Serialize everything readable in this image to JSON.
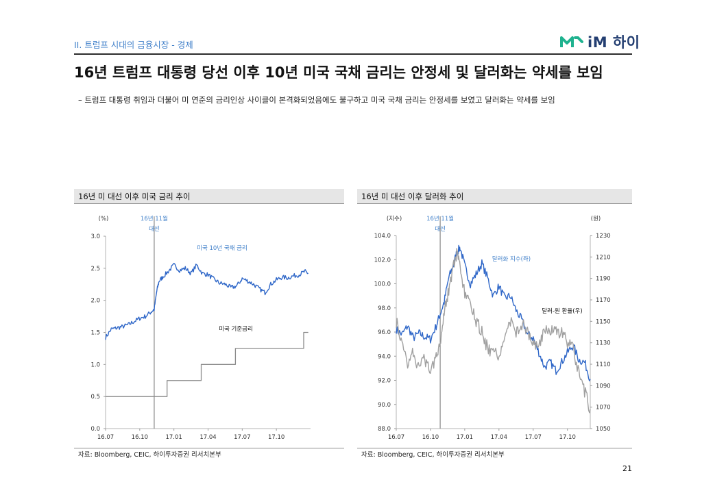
{
  "header": {
    "section_title": "II. 트럼프 시대의 금융시장 - 경제",
    "logo_text": "iM 하이"
  },
  "title": "16년 트럼프 대통령 당선 이후 10년 미국 국채 금리는 안정세 및 달러화는 약세를 보임",
  "bullet": "–  트럼프 대통령 취임과 더불어 미 연준의 금리인상 사이클이 본격화되었음에도 불구하고 미국 국채 금리는 안정세를 보였고 달러화는 약세를 보임",
  "page_number": "21",
  "colors": {
    "accent": "#3f7fc9",
    "series_blue": "#2f67c8",
    "series_gray": "#a0a0a0",
    "policy_gray": "#8a8a8a",
    "brand_green": "#1fb28f",
    "brand_navy": "#233e71"
  },
  "chart_data": [
    {
      "type": "line",
      "panel_title": "16년 미 대선 이후 미국 금리 추이",
      "source": "자료: Bloomberg, CEIC, 하이투자증권 리서치본부",
      "y_unit": "(%)",
      "ylim": [
        0,
        3.0
      ],
      "y_ticks": [
        "0.0",
        "0.5",
        "1.0",
        "1.5",
        "2.0",
        "2.5",
        "3.0"
      ],
      "x_ticks": [
        "16.07",
        "16.10",
        "17.01",
        "17.04",
        "17.07",
        "17.10"
      ],
      "x_tick_index": [
        0,
        3,
        6,
        9,
        12,
        15
      ],
      "xlim": [
        0,
        18
      ],
      "event_line": {
        "x": 4.27,
        "label_line1": "16년 11월",
        "label_line2": "대선"
      },
      "series": [
        {
          "name": "미국 10년 국채 금리",
          "style": "jagged",
          "x": [
            0,
            0.5,
            1.0,
            1.5,
            2.0,
            2.5,
            3.0,
            3.5,
            4.0,
            4.27,
            4.5,
            4.7,
            5.0,
            5.5,
            6.0,
            6.5,
            7.0,
            7.5,
            8.0,
            8.5,
            9.0,
            9.5,
            10.0,
            10.5,
            11.0,
            11.5,
            12.0,
            12.5,
            13.0,
            13.5,
            14.0,
            14.5,
            15.0,
            15.5,
            16.0,
            16.5,
            17.0,
            17.5,
            17.8
          ],
          "values": [
            1.42,
            1.55,
            1.57,
            1.59,
            1.62,
            1.67,
            1.72,
            1.75,
            1.82,
            1.86,
            2.15,
            2.3,
            2.36,
            2.45,
            2.55,
            2.47,
            2.5,
            2.42,
            2.55,
            2.42,
            2.4,
            2.33,
            2.27,
            2.25,
            2.2,
            2.22,
            2.34,
            2.3,
            2.25,
            2.18,
            2.12,
            2.25,
            2.32,
            2.36,
            2.35,
            2.38,
            2.4,
            2.45,
            2.42
          ]
        },
        {
          "name": "미국 기준금리",
          "style": "step",
          "x": [
            0,
            5.4,
            5.4,
            8.4,
            8.4,
            11.4,
            11.4,
            17.4,
            17.4,
            17.8
          ],
          "values": [
            0.5,
            0.5,
            0.75,
            0.75,
            1.0,
            1.0,
            1.25,
            1.25,
            1.5,
            1.5
          ]
        }
      ]
    },
    {
      "type": "line",
      "panel_title": "16년 미 대선 이후 달러화 추이",
      "source": "자료: Bloomberg, CEIC, 하이투자증권 리서치본부",
      "y_unit": "(지수)",
      "y2_unit": "(원)",
      "ylim": [
        88,
        104
      ],
      "y_ticks": [
        "88.0",
        "90.0",
        "92.0",
        "94.0",
        "96.0",
        "98.0",
        "100.0",
        "102.0",
        "104.0"
      ],
      "y2lim": [
        1050,
        1230
      ],
      "y2_ticks": [
        "1050",
        "1070",
        "1090",
        "1110",
        "1130",
        "1150",
        "1170",
        "1190",
        "1210",
        "1230"
      ],
      "x_ticks": [
        "16.07",
        "16.10",
        "17.01",
        "17.04",
        "17.07",
        "17.10"
      ],
      "x_tick_index": [
        0,
        3,
        6,
        9,
        12,
        15
      ],
      "xlim": [
        0,
        17
      ],
      "event_line": {
        "x": 3.85,
        "label_line1": "16년 11월",
        "label_line2": "대선"
      },
      "series": [
        {
          "name": "달러화 지수(좌)",
          "axis": "left",
          "style": "jagged",
          "x": [
            0,
            0.5,
            1.0,
            1.5,
            2.0,
            2.5,
            3.0,
            3.5,
            3.85,
            4.2,
            4.6,
            5.0,
            5.3,
            5.6,
            6.0,
            6.5,
            7.0,
            7.5,
            8.0,
            8.5,
            9.0,
            9.5,
            10.0,
            10.5,
            11.0,
            11.5,
            12.0,
            12.5,
            13.0,
            13.5,
            14.0,
            14.5,
            15.0,
            15.5,
            16.0,
            16.5,
            17.0
          ],
          "values": [
            96.2,
            95.8,
            96.5,
            95.5,
            95.9,
            95.6,
            95.4,
            96.5,
            97.5,
            98.5,
            100.5,
            101.5,
            102.6,
            103.0,
            101.5,
            100.0,
            100.8,
            101.7,
            100.5,
            99.0,
            99.8,
            98.8,
            99.0,
            97.8,
            97.0,
            95.8,
            95.5,
            94.3,
            93.1,
            93.5,
            92.8,
            93.5,
            94.3,
            94.9,
            93.7,
            93.5,
            92.1
          ]
        },
        {
          "name": "달러-원 환율(우)",
          "axis": "right",
          "style": "jagged",
          "x": [
            0,
            0.5,
            1.0,
            1.5,
            2.0,
            2.5,
            3.0,
            3.5,
            3.85,
            4.2,
            4.6,
            5.0,
            5.3,
            5.6,
            6.0,
            6.5,
            7.0,
            7.5,
            8.0,
            8.5,
            9.0,
            9.5,
            10.0,
            10.5,
            11.0,
            11.5,
            12.0,
            12.5,
            13.0,
            13.5,
            14.0,
            14.5,
            15.0,
            15.5,
            16.0,
            16.5,
            17.0
          ],
          "values": [
            1150,
            1128,
            1112,
            1122,
            1105,
            1115,
            1102,
            1120,
            1130,
            1160,
            1180,
            1200,
            1212,
            1200,
            1175,
            1165,
            1150,
            1140,
            1125,
            1120,
            1118,
            1135,
            1150,
            1140,
            1148,
            1140,
            1130,
            1125,
            1145,
            1140,
            1140,
            1140,
            1130,
            1125,
            1100,
            1085,
            1068
          ]
        }
      ]
    }
  ]
}
